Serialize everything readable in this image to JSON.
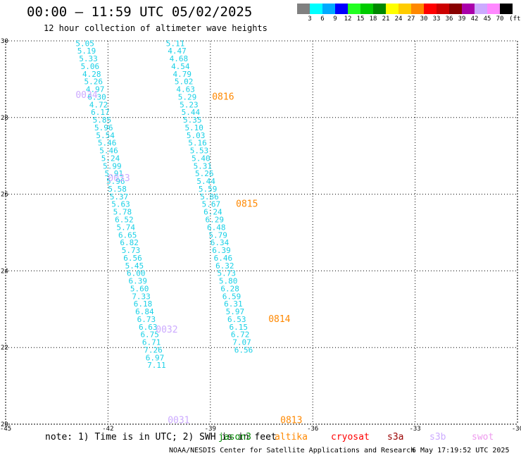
{
  "header": {
    "title": "00:00 – 11:59 UTC 05/02/2025",
    "subtitle": "12 hour collection of altimeter wave heights"
  },
  "colorbar": {
    "unit": "(ft)",
    "ticks": [
      "3",
      "6",
      "9",
      "12",
      "15",
      "18",
      "21",
      "24",
      "27",
      "30",
      "33",
      "36",
      "39",
      "42",
      "45",
      "70"
    ],
    "colors": [
      "#808080",
      "#00ffff",
      "#00aaff",
      "#0000ff",
      "#22ff22",
      "#00cc00",
      "#008800",
      "#ffff00",
      "#ffcc00",
      "#ff8800",
      "#ff0000",
      "#cc0000",
      "#880000",
      "#aa00aa",
      "#ccaaff",
      "#ff88ff",
      "#000000"
    ]
  },
  "footer": {
    "note": "note: 1) Time is in UTC; 2) SWH is in feet",
    "credit": "NOAA/NESDIS Center for Satellite Applications and Research",
    "date": "6 May 17:19:52 UTC 2025",
    "legend": [
      {
        "label": "jason3",
        "color": "#008800"
      },
      {
        "label": "altika",
        "color": "#ff8800"
      },
      {
        "label": "cryosat",
        "color": "#ff0000"
      },
      {
        "label": "s3a",
        "color": "#990000"
      },
      {
        "label": "s3b",
        "color": "#ccaaff"
      },
      {
        "label": "swot",
        "color": "#ee99ee"
      }
    ]
  },
  "chart_data": {
    "type": "scatter",
    "title": "12 hour collection of altimeter wave heights",
    "xlabel": "",
    "ylabel": "",
    "xlim": [
      -45,
      -30
    ],
    "ylim": [
      20,
      30
    ],
    "xticks": [
      "-45",
      "-42",
      "-39",
      "-36",
      "-33",
      "-30"
    ],
    "yticks": [
      "20",
      "22",
      "24",
      "26",
      "28",
      "30"
    ],
    "grid": true,
    "series": [
      {
        "name": "s3b",
        "color": "#ccaaff",
        "points": [
          [
            -42.95,
            29.94,
            "5.05"
          ],
          [
            -42.9,
            29.74,
            "5.19"
          ],
          [
            -42.85,
            29.54,
            "5.33"
          ],
          [
            -42.8,
            29.34,
            "5.06"
          ],
          [
            -42.75,
            29.14,
            "4.28"
          ],
          [
            -42.7,
            28.94,
            "5.26"
          ],
          [
            -42.65,
            28.74,
            "4.97"
          ],
          [
            -42.6,
            28.54,
            "6.30"
          ],
          [
            -42.55,
            28.34,
            "4.72"
          ],
          [
            -42.5,
            28.14,
            "6.17"
          ],
          [
            -42.45,
            27.94,
            "5.85"
          ],
          [
            -42.4,
            27.74,
            "5.96"
          ],
          [
            -42.35,
            27.54,
            "5.54"
          ],
          [
            -42.3,
            27.34,
            "5.46"
          ],
          [
            -42.25,
            27.14,
            "5.46"
          ],
          [
            -42.2,
            26.94,
            "5.24"
          ],
          [
            -42.15,
            26.74,
            "5.99"
          ],
          [
            -42.1,
            26.54,
            "5.91"
          ],
          [
            -42.05,
            26.34,
            "5.96"
          ],
          [
            -42.0,
            26.14,
            "5.58"
          ],
          [
            -41.95,
            25.94,
            "5.37"
          ],
          [
            -41.9,
            25.74,
            "5.63"
          ],
          [
            -41.85,
            25.54,
            "5.78"
          ],
          [
            -41.8,
            25.34,
            "6.52"
          ],
          [
            -41.75,
            25.14,
            "5.74"
          ],
          [
            -41.7,
            24.94,
            "6.65"
          ],
          [
            -41.65,
            24.74,
            "6.82"
          ],
          [
            -41.6,
            24.54,
            "5.73"
          ],
          [
            -41.55,
            24.34,
            "6.56"
          ],
          [
            -41.5,
            24.14,
            "5.45"
          ],
          [
            -41.45,
            23.94,
            "6.00"
          ],
          [
            -41.4,
            23.74,
            "6.39"
          ],
          [
            -41.35,
            23.54,
            "5.60"
          ],
          [
            -41.3,
            23.34,
            "7.33"
          ],
          [
            -41.25,
            23.14,
            "6.18"
          ],
          [
            -41.2,
            22.94,
            "6.84"
          ],
          [
            -41.15,
            22.74,
            "6.73"
          ],
          [
            -41.1,
            22.54,
            "6.63"
          ],
          [
            -41.05,
            22.34,
            "6.75"
          ],
          [
            -41.0,
            22.14,
            "6.71"
          ],
          [
            -40.95,
            21.94,
            "7.26"
          ],
          [
            -40.9,
            21.74,
            "6.97"
          ],
          [
            -40.85,
            21.54,
            "7.11"
          ]
        ],
        "time_labels": [
          [
            -42.95,
            28.58,
            "0034"
          ],
          [
            -42.0,
            26.42,
            "0033"
          ],
          [
            -40.6,
            22.46,
            "0032"
          ],
          [
            -40.25,
            20.1,
            "0031"
          ]
        ]
      },
      {
        "name": "altika",
        "color": "#ff8800",
        "points": [
          [
            -40.3,
            29.94,
            "5.11"
          ],
          [
            -40.25,
            29.74,
            "4.47"
          ],
          [
            -40.2,
            29.54,
            "4.68"
          ],
          [
            -40.15,
            29.34,
            "4.54"
          ],
          [
            -40.1,
            29.14,
            "4.79"
          ],
          [
            -40.05,
            28.94,
            "5.02"
          ],
          [
            -40.0,
            28.74,
            "4.63"
          ],
          [
            -39.95,
            28.54,
            "5.29"
          ],
          [
            -39.9,
            28.34,
            "5.23"
          ],
          [
            -39.85,
            28.14,
            "5.44"
          ],
          [
            -39.8,
            27.94,
            "5.35"
          ],
          [
            -39.75,
            27.74,
            "5.10"
          ],
          [
            -39.7,
            27.54,
            "5.03"
          ],
          [
            -39.65,
            27.34,
            "5.16"
          ],
          [
            -39.6,
            27.14,
            "5.53"
          ],
          [
            -39.55,
            26.94,
            "5.40"
          ],
          [
            -39.5,
            26.74,
            "5.31"
          ],
          [
            -39.45,
            26.54,
            "5.26"
          ],
          [
            -39.4,
            26.34,
            "5.44"
          ],
          [
            -39.35,
            26.14,
            "5.59"
          ],
          [
            -39.3,
            25.94,
            "5.86"
          ],
          [
            -39.25,
            25.74,
            "5.67"
          ],
          [
            -39.2,
            25.54,
            "6.24"
          ],
          [
            -39.15,
            25.34,
            "6.29"
          ],
          [
            -39.1,
            25.14,
            "6.48"
          ],
          [
            -39.05,
            24.94,
            "5.79"
          ],
          [
            -39.0,
            24.74,
            "6.34"
          ],
          [
            -38.95,
            24.54,
            "6.39"
          ],
          [
            -38.9,
            24.34,
            "6.46"
          ],
          [
            -38.85,
            24.14,
            "6.32"
          ],
          [
            -38.8,
            23.94,
            "5.73"
          ],
          [
            -38.75,
            23.74,
            "5.80"
          ],
          [
            -38.7,
            23.54,
            "6.28"
          ],
          [
            -38.65,
            23.34,
            "6.59"
          ],
          [
            -38.6,
            23.14,
            "6.31"
          ],
          [
            -38.55,
            22.94,
            "5.97"
          ],
          [
            -38.5,
            22.74,
            "6.53"
          ],
          [
            -38.45,
            22.54,
            "6.15"
          ],
          [
            -38.4,
            22.34,
            "6.72"
          ],
          [
            -38.35,
            22.14,
            "7.07"
          ],
          [
            -38.3,
            21.94,
            "6.56"
          ]
        ],
        "time_labels": [
          [
            -38.95,
            28.54,
            "0816"
          ],
          [
            -38.25,
            25.74,
            "0815"
          ],
          [
            -37.3,
            22.74,
            "0814"
          ],
          [
            -36.95,
            20.1,
            "0813"
          ]
        ]
      }
    ]
  }
}
